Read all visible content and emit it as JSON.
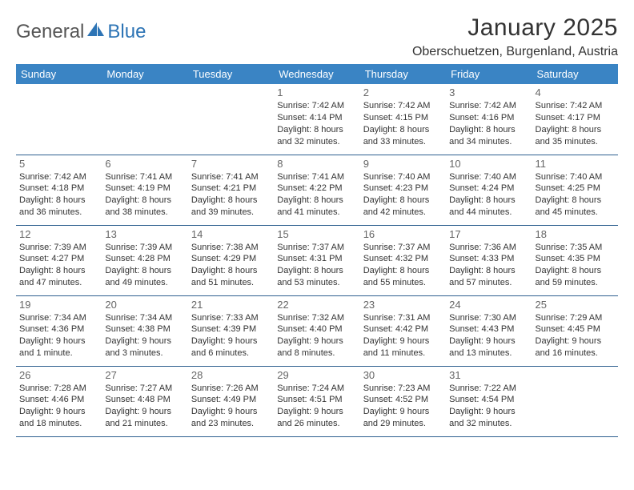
{
  "logo": {
    "text1": "General",
    "text2": "Blue",
    "icon_color": "#2d74b5"
  },
  "title": "January 2025",
  "location": "Oberschuetzen, Burgenland, Austria",
  "colors": {
    "header_bg": "#3a84c4",
    "header_text": "#ffffff",
    "row_border": "#2d5f8f",
    "daynum": "#666666",
    "body_text": "#333333"
  },
  "day_headers": [
    "Sunday",
    "Monday",
    "Tuesday",
    "Wednesday",
    "Thursday",
    "Friday",
    "Saturday"
  ],
  "weeks": [
    [
      null,
      null,
      null,
      {
        "n": "1",
        "sr": "7:42 AM",
        "ss": "4:14 PM",
        "dl": "8 hours and 32 minutes."
      },
      {
        "n": "2",
        "sr": "7:42 AM",
        "ss": "4:15 PM",
        "dl": "8 hours and 33 minutes."
      },
      {
        "n": "3",
        "sr": "7:42 AM",
        "ss": "4:16 PM",
        "dl": "8 hours and 34 minutes."
      },
      {
        "n": "4",
        "sr": "7:42 AM",
        "ss": "4:17 PM",
        "dl": "8 hours and 35 minutes."
      }
    ],
    [
      {
        "n": "5",
        "sr": "7:42 AM",
        "ss": "4:18 PM",
        "dl": "8 hours and 36 minutes."
      },
      {
        "n": "6",
        "sr": "7:41 AM",
        "ss": "4:19 PM",
        "dl": "8 hours and 38 minutes."
      },
      {
        "n": "7",
        "sr": "7:41 AM",
        "ss": "4:21 PM",
        "dl": "8 hours and 39 minutes."
      },
      {
        "n": "8",
        "sr": "7:41 AM",
        "ss": "4:22 PM",
        "dl": "8 hours and 41 minutes."
      },
      {
        "n": "9",
        "sr": "7:40 AM",
        "ss": "4:23 PM",
        "dl": "8 hours and 42 minutes."
      },
      {
        "n": "10",
        "sr": "7:40 AM",
        "ss": "4:24 PM",
        "dl": "8 hours and 44 minutes."
      },
      {
        "n": "11",
        "sr": "7:40 AM",
        "ss": "4:25 PM",
        "dl": "8 hours and 45 minutes."
      }
    ],
    [
      {
        "n": "12",
        "sr": "7:39 AM",
        "ss": "4:27 PM",
        "dl": "8 hours and 47 minutes."
      },
      {
        "n": "13",
        "sr": "7:39 AM",
        "ss": "4:28 PM",
        "dl": "8 hours and 49 minutes."
      },
      {
        "n": "14",
        "sr": "7:38 AM",
        "ss": "4:29 PM",
        "dl": "8 hours and 51 minutes."
      },
      {
        "n": "15",
        "sr": "7:37 AM",
        "ss": "4:31 PM",
        "dl": "8 hours and 53 minutes."
      },
      {
        "n": "16",
        "sr": "7:37 AM",
        "ss": "4:32 PM",
        "dl": "8 hours and 55 minutes."
      },
      {
        "n": "17",
        "sr": "7:36 AM",
        "ss": "4:33 PM",
        "dl": "8 hours and 57 minutes."
      },
      {
        "n": "18",
        "sr": "7:35 AM",
        "ss": "4:35 PM",
        "dl": "8 hours and 59 minutes."
      }
    ],
    [
      {
        "n": "19",
        "sr": "7:34 AM",
        "ss": "4:36 PM",
        "dl": "9 hours and 1 minute."
      },
      {
        "n": "20",
        "sr": "7:34 AM",
        "ss": "4:38 PM",
        "dl": "9 hours and 3 minutes."
      },
      {
        "n": "21",
        "sr": "7:33 AM",
        "ss": "4:39 PM",
        "dl": "9 hours and 6 minutes."
      },
      {
        "n": "22",
        "sr": "7:32 AM",
        "ss": "4:40 PM",
        "dl": "9 hours and 8 minutes."
      },
      {
        "n": "23",
        "sr": "7:31 AM",
        "ss": "4:42 PM",
        "dl": "9 hours and 11 minutes."
      },
      {
        "n": "24",
        "sr": "7:30 AM",
        "ss": "4:43 PM",
        "dl": "9 hours and 13 minutes."
      },
      {
        "n": "25",
        "sr": "7:29 AM",
        "ss": "4:45 PM",
        "dl": "9 hours and 16 minutes."
      }
    ],
    [
      {
        "n": "26",
        "sr": "7:28 AM",
        "ss": "4:46 PM",
        "dl": "9 hours and 18 minutes."
      },
      {
        "n": "27",
        "sr": "7:27 AM",
        "ss": "4:48 PM",
        "dl": "9 hours and 21 minutes."
      },
      {
        "n": "28",
        "sr": "7:26 AM",
        "ss": "4:49 PM",
        "dl": "9 hours and 23 minutes."
      },
      {
        "n": "29",
        "sr": "7:24 AM",
        "ss": "4:51 PM",
        "dl": "9 hours and 26 minutes."
      },
      {
        "n": "30",
        "sr": "7:23 AM",
        "ss": "4:52 PM",
        "dl": "9 hours and 29 minutes."
      },
      {
        "n": "31",
        "sr": "7:22 AM",
        "ss": "4:54 PM",
        "dl": "9 hours and 32 minutes."
      },
      null
    ]
  ],
  "labels": {
    "sunrise": "Sunrise:",
    "sunset": "Sunset:",
    "daylight": "Daylight:"
  }
}
